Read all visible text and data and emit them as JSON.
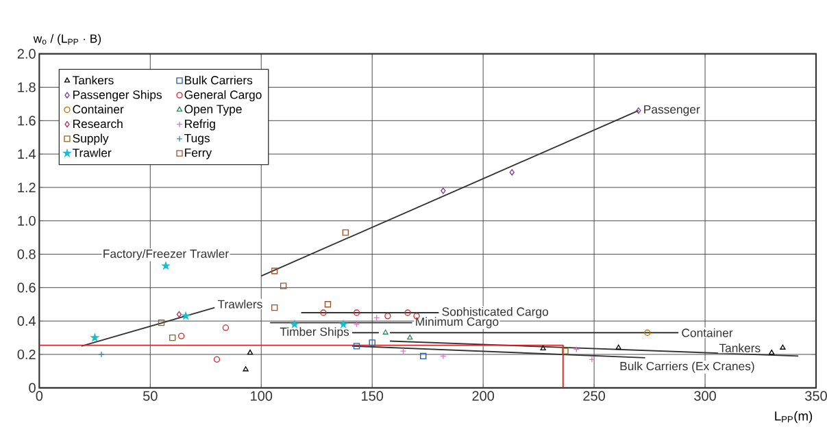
{
  "chart_data": {
    "type": "scatter",
    "xlabel": "L$_{PP}$(m)",
    "ylabel": "w$_{o}$ / (L$_{PP}$ · B)",
    "xlim": [
      0,
      350
    ],
    "ylim": [
      0,
      2.0
    ],
    "xticks": [
      0,
      50,
      100,
      150,
      200,
      250,
      300,
      350
    ],
    "yticks": [
      0,
      {
        "value": 0.2,
        "label": "0.2"
      },
      {
        "value": 0.4,
        "label": "0.4"
      },
      {
        "value": 0.6,
        "label": "0.6"
      },
      {
        "value": 0.8,
        "label": "0.8"
      },
      {
        "value": 1.0,
        "label": "1.0"
      },
      {
        "value": 1.2,
        "label": "1.2"
      },
      {
        "value": 1.4,
        "label": "1.4"
      },
      {
        "value": 1.6,
        "label": "1.6"
      },
      {
        "value": 1.8,
        "label": "1.8"
      },
      {
        "value": 2.0,
        "label": "2.0"
      }
    ],
    "grid": true,
    "legend": "top left",
    "annotations": [
      {
        "text": "Factory/Freezer Trawler",
        "x": 57,
        "y": 0.73
      }
    ],
    "series": [
      {
        "name": "Passenger",
        "type": "line",
        "color": "#333333",
        "x": [
          100,
          270
        ],
        "values": [
          0.67,
          1.66
        ]
      },
      {
        "name": "Trawlers",
        "type": "line",
        "color": "#333333",
        "x": [
          19,
          79
        ],
        "values": [
          0.25,
          0.48
        ]
      },
      {
        "name": "Sophisticated Cargo",
        "type": "line",
        "color": "#333333",
        "x": [
          118,
          180
        ],
        "values": [
          0.45,
          0.45
        ]
      },
      {
        "name": "Minimum Cargo",
        "type": "line",
        "color": "#333333",
        "x": [
          104,
          168
        ],
        "values": [
          0.39,
          0.39
        ]
      },
      {
        "name": "Timber Ships",
        "type": "line",
        "color": "#333333",
        "x": [
          141,
          153
        ],
        "values": [
          0.33,
          0.33
        ]
      },
      {
        "name": "Container",
        "type": "line",
        "color": "#333333",
        "x": [
          158,
          288
        ],
        "values": [
          0.33,
          0.33
        ]
      },
      {
        "name": "Tankers",
        "type": "line",
        "color": "#333333",
        "x": [
          158,
          342
        ],
        "values": [
          0.28,
          0.19
        ]
      },
      {
        "name": "Bulk Carriers (Ex Cranes)",
        "type": "line",
        "color": "#333333",
        "x": [
          141,
          273
        ],
        "values": [
          0.25,
          0.18
        ]
      },
      {
        "type": "line",
        "color": "#e02020",
        "x": [
          0,
          236,
          236
        ],
        "values": [
          0.255,
          0.255,
          0
        ]
      },
      {
        "name": "Tankers",
        "marker": "triangle",
        "color": "#000000",
        "x": [
          95,
          93,
          227,
          261,
          330,
          335
        ],
        "values": [
          0.21,
          0.11,
          0.235,
          0.24,
          0.21,
          0.24
        ]
      },
      {
        "name": "Bulk Carriers",
        "marker": "square",
        "color": "#1f5fa8",
        "x": [
          143,
          150,
          173
        ],
        "values": [
          0.25,
          0.27,
          0.19
        ]
      },
      {
        "name": "Passenger Ships",
        "marker": "diamond",
        "color": "#7a3b9a",
        "x": [
          182,
          213,
          270
        ],
        "values": [
          1.18,
          1.29,
          1.66
        ]
      },
      {
        "name": "General Cargo",
        "marker": "circle",
        "color": "#d62728",
        "x": [
          80,
          84,
          64,
          128,
          143,
          157,
          166,
          170
        ],
        "values": [
          0.17,
          0.36,
          0.31,
          0.45,
          0.45,
          0.43,
          0.45,
          0.43
        ]
      },
      {
        "name": "Container",
        "marker": "circle",
        "color": "#c07000",
        "x": [
          274
        ],
        "values": [
          0.33
        ]
      },
      {
        "name": "Open Type",
        "marker": "triangle",
        "color": "#2e8b57",
        "x": [
          156,
          167
        ],
        "values": [
          0.33,
          0.3
        ]
      },
      {
        "name": "Research",
        "marker": "diamond",
        "color": "#b03060",
        "x": [
          63
        ],
        "values": [
          0.44
        ]
      },
      {
        "name": "Refrig",
        "marker": "cross",
        "color": "#e377c2",
        "x": [
          143,
          152,
          164,
          182,
          242,
          249
        ],
        "values": [
          0.38,
          0.42,
          0.22,
          0.19,
          0.23,
          0.17
        ]
      },
      {
        "name": "Supply",
        "marker": "square",
        "color": "#8b6914",
        "x": [
          55,
          60,
          237
        ],
        "values": [
          0.39,
          0.3,
          0.22
        ]
      },
      {
        "name": "Tugs",
        "marker": "cross",
        "color": "#4682b4",
        "x": [
          28
        ],
        "values": [
          0.2
        ]
      },
      {
        "name": "Trawler",
        "marker": "star",
        "color": "#17becf",
        "x": [
          25,
          57,
          66,
          115,
          137
        ],
        "values": [
          0.3,
          0.73,
          0.43,
          0.38,
          0.38
        ]
      },
      {
        "name": "Ferry",
        "marker": "square",
        "color": "#a0522d",
        "x": [
          106,
          110,
          106,
          130,
          138
        ],
        "values": [
          0.7,
          0.61,
          0.48,
          0.5,
          0.93
        ]
      }
    ]
  }
}
